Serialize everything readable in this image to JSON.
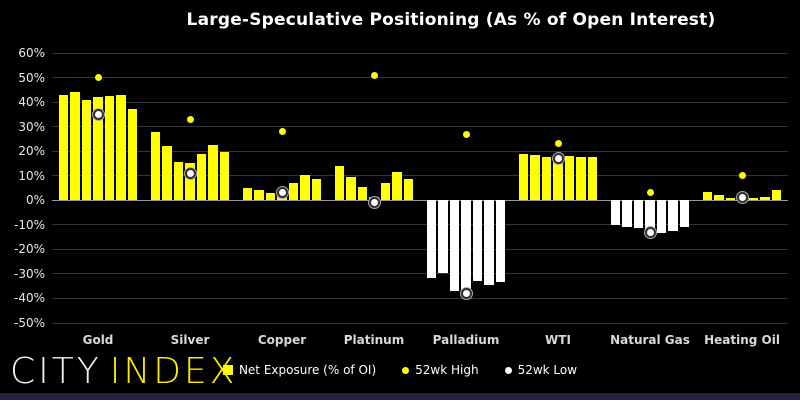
{
  "logo": {
    "city": "CITY",
    "index": "INDEX"
  },
  "legend": [
    {
      "label": "Net Exposure (% of OI)",
      "marker": "square",
      "color": "#ffff00"
    },
    {
      "label": "52wk High",
      "marker": "dot",
      "color": "#ffff00"
    },
    {
      "label": "52wk Low",
      "marker": "dot",
      "color": "#ffffff"
    }
  ],
  "colors": {
    "background": "#000000",
    "positive_bar": "#ffff00",
    "negative_bar": "#ffffff",
    "gridline": "#353535",
    "zero_line": "#9a9a9a",
    "title_text": "#ffffff",
    "footer_bar": "#23233d"
  },
  "chart_data": {
    "type": "bar",
    "title": "Large-Speculative Positioning (As % of Open Interest)",
    "ylabel": "",
    "xlabel": "",
    "ylim": [
      -50,
      60
    ],
    "ytick_step": 10,
    "ytick_labels": [
      "60%",
      "50%",
      "40%",
      "30%",
      "20%",
      "10%",
      "0%",
      "-10%",
      "-20%",
      "-30%",
      "-40%",
      "-50%"
    ],
    "grid": true,
    "legend_position": "bottom",
    "bars_per_group_note": "7 weekly net-exposure bars per commodity, plus 52wk high (yellow dot) and 52wk low (white dot)",
    "categories": [
      "Gold",
      "Silver",
      "Copper",
      "Platinum",
      "Palladium",
      "WTI",
      "Natural Gas",
      "Heating Oil"
    ],
    "groups": [
      {
        "category": "Gold",
        "bars": [
          43,
          44,
          41,
          42,
          42.5,
          43,
          37
        ],
        "high52wk": 50,
        "low52wk": 35
      },
      {
        "category": "Silver",
        "bars": [
          28,
          22,
          15.5,
          15,
          19,
          22.5,
          19.5
        ],
        "high52wk": 33,
        "low52wk": 11
      },
      {
        "category": "Copper",
        "bars": [
          5,
          4,
          3,
          3.5,
          7,
          10.5,
          8.5
        ],
        "high52wk": 28,
        "low52wk": 3
      },
      {
        "category": "Platinum",
        "bars": [
          14,
          9.5,
          5.5,
          1.5,
          7,
          11.5,
          8.5
        ],
        "high52wk": 51,
        "low52wk": -1
      },
      {
        "category": "Palladium",
        "bars": [
          -31.5,
          -29.5,
          -37,
          -36.5,
          -33,
          -34.5,
          -33.5
        ],
        "high52wk": 27,
        "low52wk": -38
      },
      {
        "category": "WTI",
        "bars": [
          19,
          18.5,
          17.5,
          17,
          18,
          17.5,
          17.5
        ],
        "high52wk": 23,
        "low52wk": 17
      },
      {
        "category": "Natural Gas",
        "bars": [
          -10,
          -11,
          -11.5,
          -12,
          -13.5,
          -12.5,
          -11
        ],
        "high52wk": 3,
        "low52wk": -13
      },
      {
        "category": "Heating Oil",
        "bars": [
          3.5,
          2,
          1,
          0.5,
          1,
          1.5,
          4
        ],
        "high52wk": 10,
        "low52wk": 1
      }
    ]
  }
}
